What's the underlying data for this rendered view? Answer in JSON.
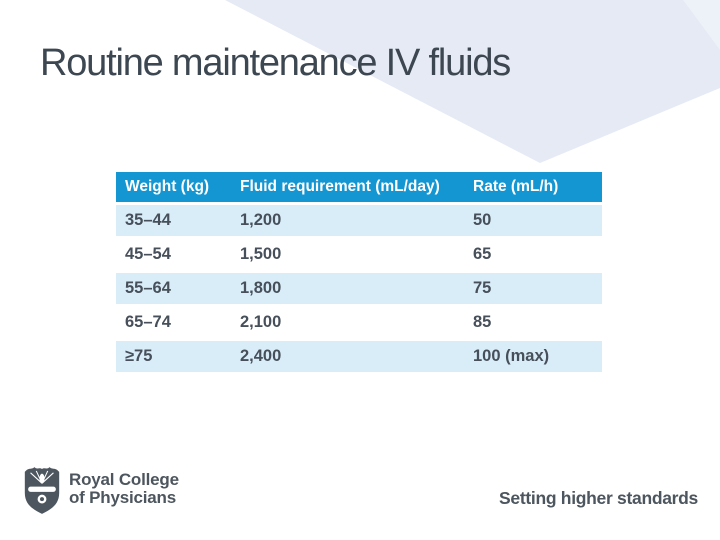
{
  "slide": {
    "title": "Routine maintenance IV fluids",
    "footer": {
      "logo_line1": "Royal College",
      "logo_line2": "of Physicians",
      "tagline": "Setting higher standards"
    }
  },
  "table": {
    "headers": [
      "Weight (kg)",
      "Fluid requirement (mL/day)",
      "Rate (mL/h)"
    ],
    "rows": [
      [
        "35–44",
        "1,200",
        "50"
      ],
      [
        "45–54",
        "1,500",
        "65"
      ],
      [
        "55–64",
        "1,800",
        "75"
      ],
      [
        "65–74",
        "2,100",
        "85"
      ],
      [
        "≥75",
        "2,400",
        "100 (max)"
      ]
    ]
  },
  "colors": {
    "header_blue": "#1496d2",
    "row_light_blue": "#d9edf9",
    "chevron": "#e5eaf4",
    "chevron_light": "#edf1f8",
    "title_text": "#3d4751",
    "body_text": "#47505a",
    "footer_text": "#4d565e"
  }
}
